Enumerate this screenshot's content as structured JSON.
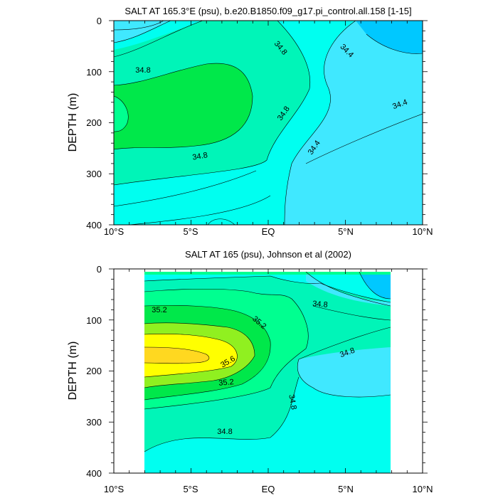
{
  "chart_data": [
    {
      "type": "contour",
      "title": "SALT AT 165.3°E (psu), b.e20.B1850.f09_g17.pi_control.all.158 [1-15]",
      "ylabel": "DEPTH (m)",
      "xlabel": "",
      "xlim": [
        -10,
        10
      ],
      "ylim": [
        0,
        400
      ],
      "y_inverted": true,
      "x_ticks": [
        {
          "value": -10,
          "label": "10°S"
        },
        {
          "value": -5,
          "label": "5°S"
        },
        {
          "value": 0,
          "label": "EQ"
        },
        {
          "value": 5,
          "label": "5°N"
        },
        {
          "value": 10,
          "label": "10°N"
        }
      ],
      "y_ticks": [
        {
          "value": 0,
          "label": "0"
        },
        {
          "value": 100,
          "label": "100"
        },
        {
          "value": 200,
          "label": "200"
        },
        {
          "value": 300,
          "label": "300"
        },
        {
          "value": 400,
          "label": "400"
        }
      ],
      "contour_labels": [
        {
          "x": -7.3,
          "y": 98,
          "text": "34.8"
        },
        {
          "x": 1.0,
          "y": 55,
          "text": "34.8"
        },
        {
          "x": 5.1,
          "y": 60,
          "text": "34.4"
        },
        {
          "x": 8.5,
          "y": 160,
          "text": "34.4"
        },
        {
          "x": 1.1,
          "y": 183,
          "text": "34.8"
        },
        {
          "x": 3.0,
          "y": 248,
          "text": "34.4"
        },
        {
          "x": -3.1,
          "y": 265,
          "text": "34.8"
        }
      ]
    },
    {
      "type": "contour",
      "title": "SALT AT 165 (psu), Johnson et al (2002)",
      "ylabel": "DEPTH (m)",
      "xlabel": "",
      "xlim": [
        -10,
        10
      ],
      "ylim": [
        0,
        400
      ],
      "y_inverted": true,
      "data_extent_x": [
        -8,
        8
      ],
      "data_extent_y": [
        5,
        400
      ],
      "x_ticks": [
        {
          "value": -10,
          "label": "10°S"
        },
        {
          "value": -5,
          "label": "5°S"
        },
        {
          "value": 0,
          "label": "EQ"
        },
        {
          "value": 5,
          "label": "5°N"
        },
        {
          "value": 10,
          "label": "10°N"
        }
      ],
      "y_ticks": [
        {
          "value": 0,
          "label": "0"
        },
        {
          "value": 100,
          "label": "100"
        },
        {
          "value": 200,
          "label": "200"
        },
        {
          "value": 300,
          "label": "300"
        },
        {
          "value": 400,
          "label": "400"
        }
      ],
      "contour_labels": [
        {
          "x": -6.7,
          "y": 78,
          "text": "35.2"
        },
        {
          "x": -0.4,
          "y": 100,
          "text": "35.2"
        },
        {
          "x": 3.4,
          "y": 68,
          "text": "34.8"
        },
        {
          "x": -2.5,
          "y": 180,
          "text": "35.6"
        },
        {
          "x": 5.0,
          "y": 162,
          "text": "34.8"
        },
        {
          "x": -2.5,
          "y": 222,
          "text": "35.2"
        },
        {
          "x": 1.6,
          "y": 262,
          "text": "34.8"
        },
        {
          "x": -5.9,
          "y": 311,
          "text": "34.8"
        }
      ]
    }
  ],
  "colors": {
    "lev_lt34": "#00c8ff",
    "lev_34_4": "#40e8ff",
    "lev_34_6": "#00fff0",
    "lev_34_8": "#00f5b8",
    "lev_35_0": "#00ff90",
    "lev_35_2": "#00e84a",
    "lev_35_4": "#90f020",
    "lev_35_6": "#ffff00",
    "lev_35_8": "#ffd820"
  }
}
